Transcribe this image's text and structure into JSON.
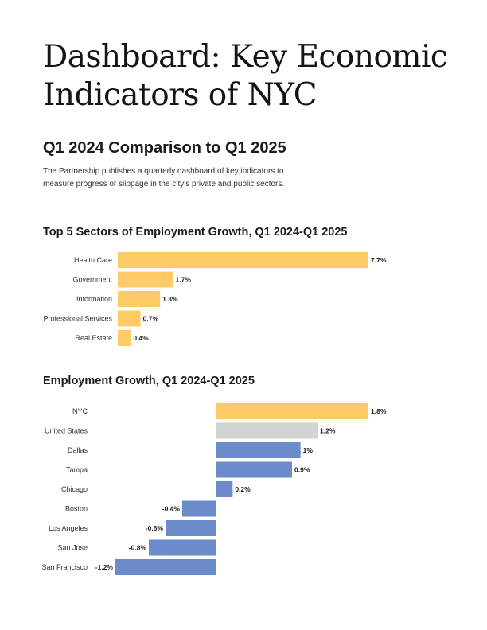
{
  "header": {
    "title": "Dashboard: Key Economic Indicators of NYC",
    "subtitle": "Q1 2024 Comparison to Q1 2025",
    "intro": "The Partnership publishes a quarterly dashboard of key indicators to measure progress or slippage in the city's private and public sectors."
  },
  "colors": {
    "nyc": "#FFCB66",
    "united_states": "#D3D3D3",
    "other_cities": "#6B8BCB"
  },
  "chart_data": [
    {
      "type": "bar",
      "orientation": "horizontal",
      "title": "Top 5 Sectors of Employment Growth, Q1 2024-Q1 2025",
      "categories": [
        "Health Care",
        "Government",
        "Information",
        "Professional Services",
        "Real Estate"
      ],
      "values": [
        7.7,
        1.7,
        1.3,
        0.7,
        0.4
      ],
      "value_labels": [
        "7.7%",
        "1.7%",
        "1.3%",
        "0.7%",
        "0.4%"
      ],
      "unit": "%",
      "xlim": [
        0,
        7.7
      ],
      "grid": false,
      "bar_color": "#FFCB66"
    },
    {
      "type": "bar",
      "orientation": "horizontal",
      "title": "Employment Growth, Q1 2024-Q1 2025",
      "categories": [
        "NYC",
        "United States",
        "Dallas",
        "Tampa",
        "Chicago",
        "Boston",
        "Los Angeles",
        "San Jose",
        "San Francisco"
      ],
      "values": [
        1.8,
        1.2,
        1.0,
        0.9,
        0.2,
        -0.4,
        -0.6,
        -0.8,
        -1.2
      ],
      "value_labels": [
        "1.8%",
        "1.2%",
        "1%",
        "0.9%",
        "0.2%",
        "-0.4%",
        "-0.6%",
        "-0.8%",
        "-1.2%"
      ],
      "bar_colors": [
        "#FFCB66",
        "#D3D3D3",
        "#6B8BCB",
        "#6B8BCB",
        "#6B8BCB",
        "#6B8BCB",
        "#6B8BCB",
        "#6B8BCB",
        "#6B8BCB"
      ],
      "unit": "%",
      "xlim": [
        -1.2,
        1.8
      ],
      "grid": false
    }
  ]
}
